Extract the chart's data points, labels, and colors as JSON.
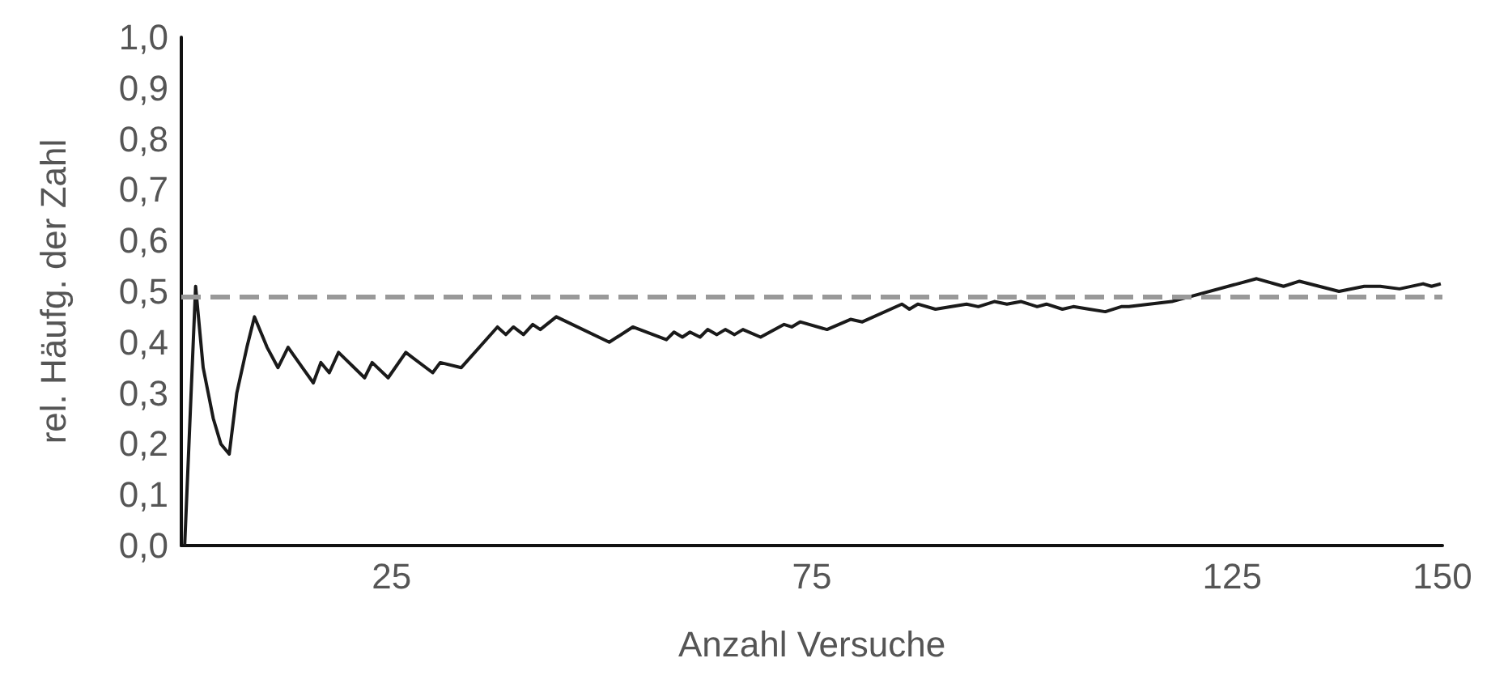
{
  "chart_data": {
    "type": "line",
    "xlabel": "Anzahl Versuche",
    "ylabel": "rel. Häufg. der Zahl",
    "xlim": [
      0,
      150
    ],
    "xticks": [
      25,
      75,
      125,
      150
    ],
    "ylim": [
      0,
      1
    ],
    "yticks": [
      {
        "value": 0,
        "label": "0,0"
      },
      {
        "value": 0.1,
        "label": "0,1"
      },
      {
        "value": 0.2,
        "label": "0,2"
      },
      {
        "value": 0.3,
        "label": "0,3"
      },
      {
        "value": 0.4,
        "label": "0,4"
      },
      {
        "value": 0.5,
        "label": "0,5"
      },
      {
        "value": 0.6,
        "label": "0,6"
      },
      {
        "value": 0.7,
        "label": "0,7"
      },
      {
        "value": 0.8,
        "label": "0,8"
      },
      {
        "value": 0.9,
        "label": "0,9"
      },
      {
        "value": 1,
        "label": "1,0"
      }
    ],
    "grid": false,
    "marker": "none",
    "line_style": "solid",
    "ref_lines": [
      {
        "axis": "y",
        "value": 0.49,
        "color": "#999999",
        "line_style": "dashed"
      }
    ],
    "series": [
      {
        "color": "#1a1a1a",
        "x": [
          0.4,
          1.7,
          2.6,
          3.8,
          4.7,
          5.7,
          6.6,
          7.8,
          8.7,
          10.2,
          11.5,
          12.7,
          14.4,
          15.7,
          16.6,
          17.6,
          18.7,
          21.8,
          22.7,
          24.6,
          26.7,
          29.9,
          30.8,
          33.3,
          37.6,
          38.6,
          39.5,
          40.7,
          41.8,
          42.7,
          44.6,
          50.9,
          53.7,
          57.7,
          58.6,
          59.6,
          60.5,
          61.7,
          62.6,
          63.7,
          64.7,
          65.8,
          66.8,
          68.9,
          71.7,
          72.6,
          73.6,
          76.8,
          79.6,
          81.0,
          85.7,
          86.6,
          87.6,
          89.7,
          91.6,
          93.4,
          94.8,
          96.7,
          98.2,
          99.9,
          101.8,
          102.9,
          104.8,
          106.1,
          108.0,
          109.9,
          111.8,
          112.7,
          117.8,
          127.9,
          131.1,
          133.0,
          137.7,
          140.7,
          142.6,
          144.9,
          147.7,
          148.7,
          149.8
        ],
        "values": [
          0,
          0.51,
          0.35,
          0.25,
          0.2,
          0.18,
          0.3,
          0.39,
          0.45,
          0.39,
          0.35,
          0.39,
          0.35,
          0.32,
          0.36,
          0.34,
          0.38,
          0.33,
          0.36,
          0.33,
          0.38,
          0.34,
          0.36,
          0.35,
          0.43,
          0.415,
          0.43,
          0.415,
          0.435,
          0.425,
          0.45,
          0.4,
          0.43,
          0.405,
          0.42,
          0.41,
          0.42,
          0.41,
          0.425,
          0.415,
          0.425,
          0.415,
          0.425,
          0.41,
          0.435,
          0.43,
          0.44,
          0.425,
          0.445,
          0.44,
          0.475,
          0.465,
          0.475,
          0.465,
          0.47,
          0.475,
          0.47,
          0.48,
          0.475,
          0.48,
          0.47,
          0.475,
          0.465,
          0.47,
          0.465,
          0.46,
          0.47,
          0.47,
          0.48,
          0.525,
          0.51,
          0.52,
          0.5,
          0.51,
          0.51,
          0.505,
          0.515,
          0.51,
          0.515
        ]
      }
    ]
  }
}
